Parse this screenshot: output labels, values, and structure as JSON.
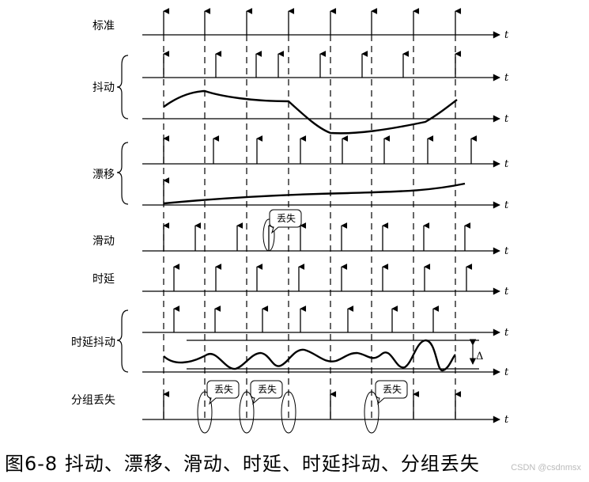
{
  "figure": {
    "axis_symbol": "t",
    "caption": "图6-8  抖动、漂移、滑动、时延、时延抖动、分组丢失",
    "watermark": "CSDN @csdnmsx",
    "delta_symbol": "Δ",
    "loss_text": "丢失",
    "rows": [
      {
        "id": "standard",
        "label": "标准"
      },
      {
        "id": "jitter",
        "label": "抖动"
      },
      {
        "id": "drift",
        "label": "漂移"
      },
      {
        "id": "slip",
        "label": "滑动"
      },
      {
        "id": "delay",
        "label": "时延"
      },
      {
        "id": "delay-jitter",
        "label": "时延抖动"
      },
      {
        "id": "packet-loss",
        "label": "分组丢失"
      }
    ]
  }
}
